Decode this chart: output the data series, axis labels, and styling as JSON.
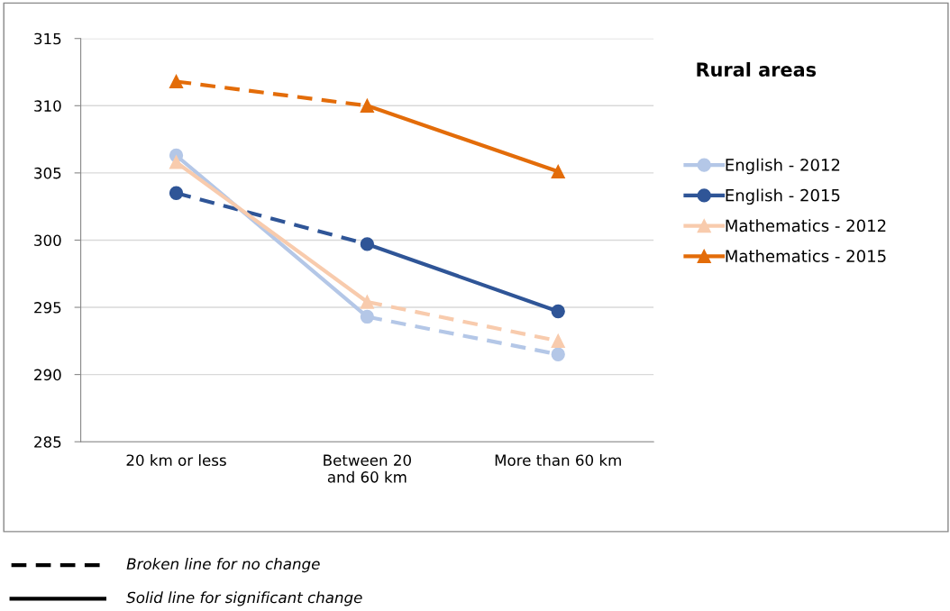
{
  "chart_data": {
    "type": "line",
    "categories": [
      "20 km or less",
      "Between 20\nand 60 km",
      "More than 60 km"
    ],
    "series": [
      {
        "name": "English - 2012",
        "color": "#b4c7e7",
        "marker": "circle",
        "values": [
          306.3,
          294.3,
          291.5
        ],
        "line_style": [
          "solid",
          "dashed"
        ]
      },
      {
        "name": "English - 2015",
        "color": "#2f5597",
        "marker": "circle",
        "values": [
          303.5,
          299.7,
          294.7
        ],
        "line_style": [
          "dashed",
          "solid"
        ]
      },
      {
        "name": "Mathematics - 2012",
        "color": "#f8cbad",
        "marker": "triangle",
        "values": [
          305.8,
          295.4,
          292.5
        ],
        "line_style": [
          "solid",
          "dashed"
        ]
      },
      {
        "name": "Mathematics - 2015",
        "color": "#e36c09",
        "marker": "triangle",
        "values": [
          311.8,
          310.0,
          305.1
        ],
        "line_style": [
          "dashed",
          "solid"
        ]
      }
    ],
    "ylim": [
      285,
      315
    ],
    "yticks": [
      285,
      290,
      295,
      300,
      305,
      310,
      315
    ],
    "grid": "y",
    "legend": "right",
    "legend_title": "Rural areas",
    "annotations": [
      "Broken line for no change",
      "Solid line for significant change"
    ]
  }
}
